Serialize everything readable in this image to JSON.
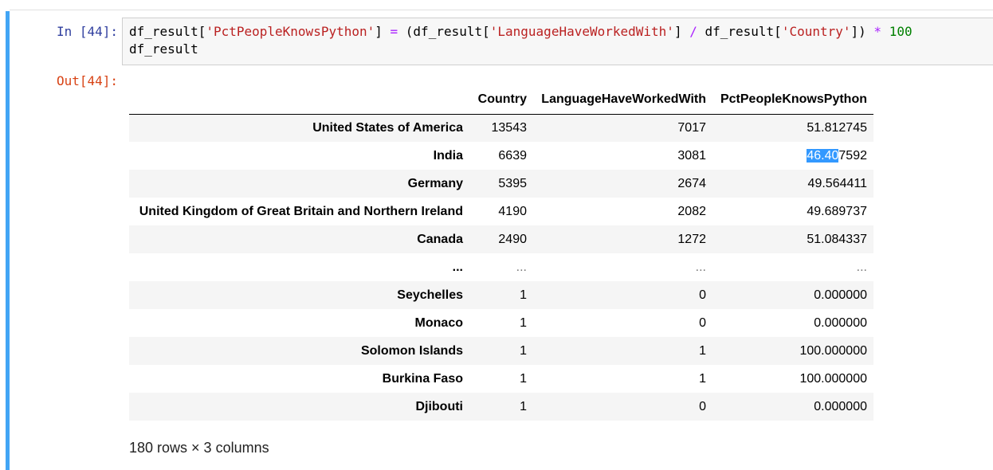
{
  "cell": {
    "in_prompt": "In [44]:",
    "out_prompt": "Out[44]:",
    "accent_color": "#42a5f5",
    "code_line1": {
      "a": "df_result[",
      "s1": "'PctPeopleKnowsPython'",
      "b": "] ",
      "eq": "=",
      "c": " (df_result[",
      "s2": "'LanguageHaveWorkedWith'",
      "d": "] ",
      "div": "/",
      "e": " df_result[",
      "s3": "'Country'",
      "f": "]) ",
      "mul": "*",
      "g": " ",
      "num": "100"
    },
    "code_line2": "df_result"
  },
  "table": {
    "columns": [
      "Country",
      "LanguageHaveWorkedWith",
      "PctPeopleKnowsPython"
    ],
    "rows": [
      {
        "index": "United States of America",
        "country": "13543",
        "lang": "7017",
        "pct": "51.812745"
      },
      {
        "index": "India",
        "country": "6639",
        "lang": "3081",
        "pct_selected": "46.40",
        "pct_rest": "7592"
      },
      {
        "index": "Germany",
        "country": "5395",
        "lang": "2674",
        "pct": "49.564411"
      },
      {
        "index": "United Kingdom of Great Britain and Northern Ireland",
        "country": "4190",
        "lang": "2082",
        "pct": "49.689737"
      },
      {
        "index": "Canada",
        "country": "2490",
        "lang": "1272",
        "pct": "51.084337"
      },
      {
        "index": "...",
        "country": "...",
        "lang": "...",
        "pct": "..."
      },
      {
        "index": "Seychelles",
        "country": "1",
        "lang": "0",
        "pct": "0.000000"
      },
      {
        "index": "Monaco",
        "country": "1",
        "lang": "0",
        "pct": "0.000000"
      },
      {
        "index": "Solomon Islands",
        "country": "1",
        "lang": "1",
        "pct": "100.000000"
      },
      {
        "index": "Burkina Faso",
        "country": "1",
        "lang": "1",
        "pct": "100.000000"
      },
      {
        "index": "Djibouti",
        "country": "1",
        "lang": "0",
        "pct": "0.000000"
      }
    ],
    "shape_text": "180 rows × 3 columns"
  }
}
